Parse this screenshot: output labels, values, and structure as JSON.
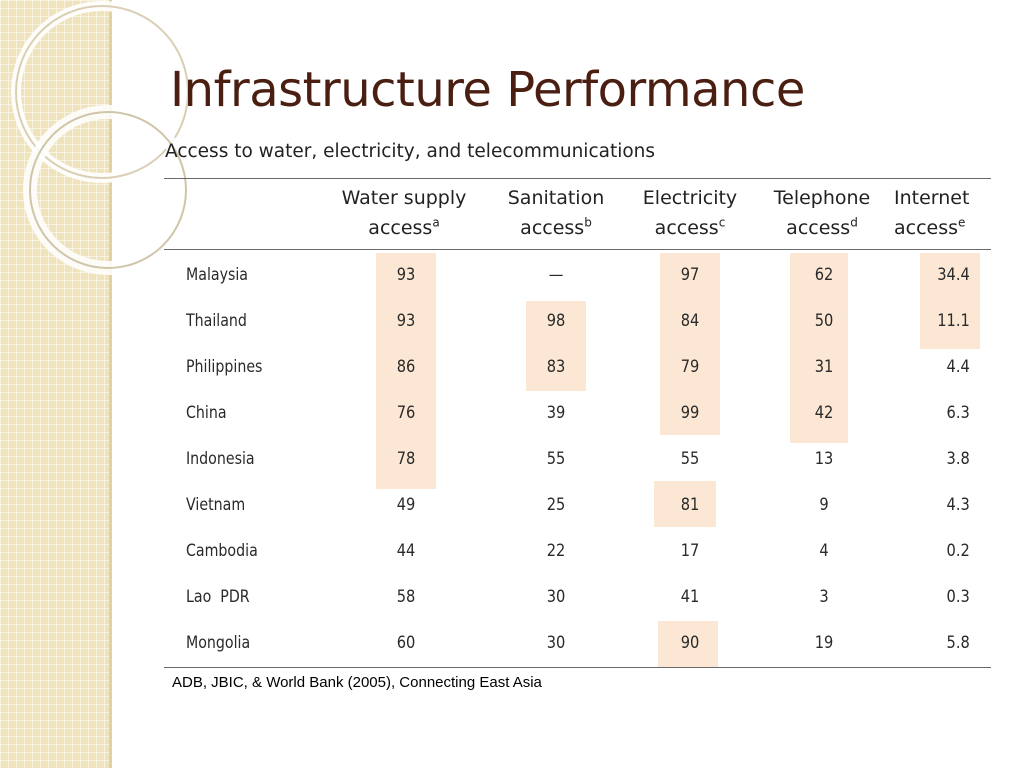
{
  "slide": {
    "title": "Infrastructure Performance",
    "subtitle": "Access to water, electricity, and telecommunications",
    "source": "ADB, JBIC, & World Bank (2005), Connecting East Asia"
  },
  "table": {
    "headers": [
      {
        "line1": "Water supply",
        "line2": "access",
        "sup": "a"
      },
      {
        "line1": "Sanitation",
        "line2": "access",
        "sup": "b"
      },
      {
        "line1": "Electricity",
        "line2": "access",
        "sup": "c"
      },
      {
        "line1": "Telephone",
        "line2": "access",
        "sup": "d"
      },
      {
        "line1": "Internet",
        "line2": "access",
        "sup": "e"
      }
    ],
    "rows": [
      {
        "country": "Malaysia",
        "water": "93",
        "sanitation": "—",
        "electricity": "97",
        "telephone": "62",
        "internet": "34.4"
      },
      {
        "country": "Thailand",
        "water": "93",
        "sanitation": "98",
        "electricity": "84",
        "telephone": "50",
        "internet": "11.1"
      },
      {
        "country": "Philippines",
        "water": "86",
        "sanitation": "83",
        "electricity": "79",
        "telephone": "31",
        "internet": "4.4"
      },
      {
        "country": "China",
        "water": "76",
        "sanitation": "39",
        "electricity": "99",
        "telephone": "42",
        "internet": "6.3"
      },
      {
        "country": "Indonesia",
        "water": "78",
        "sanitation": "55",
        "electricity": "55",
        "telephone": "13",
        "internet": "3.8"
      },
      {
        "country": "Vietnam",
        "water": "49",
        "sanitation": "25",
        "electricity": "81",
        "telephone": "9",
        "internet": "4.3"
      },
      {
        "country": "Cambodia",
        "water": "44",
        "sanitation": "22",
        "electricity": "17",
        "telephone": "4",
        "internet": "0.2"
      },
      {
        "country": "Lao  PDR",
        "water": "58",
        "sanitation": "30",
        "electricity": "41",
        "telephone": "3",
        "internet": "0.3"
      },
      {
        "country": "Mongolia",
        "water": "60",
        "sanitation": "30",
        "electricity": "90",
        "telephone": "19",
        "internet": "5.8"
      }
    ],
    "highlight_color": "#fbe7d4"
  },
  "colors": {
    "title": "#4a1f12",
    "side_strip": "#efe3bd"
  }
}
